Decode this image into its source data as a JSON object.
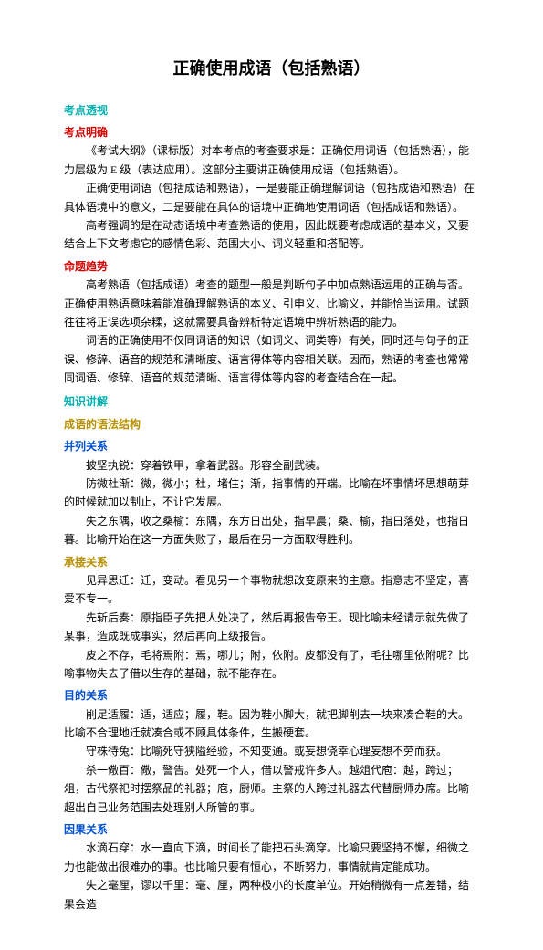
{
  "title": "正确使用成语（包括熟语）",
  "sections": [
    {
      "cls": "h-cyan",
      "bind": "s.kdtc"
    },
    {
      "cls": "h-red",
      "bind": "s.kdsm"
    },
    {
      "cls": "para",
      "bind": "p.kd1"
    },
    {
      "cls": "para",
      "bind": "p.kd2"
    },
    {
      "cls": "para",
      "bind": "p.kd3"
    },
    {
      "cls": "h-red",
      "bind": "s.mtxs"
    },
    {
      "cls": "para",
      "bind": "p.mt1"
    },
    {
      "cls": "para",
      "bind": "p.mt2"
    },
    {
      "cls": "h-cyan",
      "bind": "s.zsjj"
    },
    {
      "cls": "h-gold",
      "bind": "s.yfjg1"
    },
    {
      "cls": "h-blue",
      "bind": "s.bl"
    },
    {
      "cls": "para",
      "bind": "p.bl1"
    },
    {
      "cls": "para",
      "bind": "p.bl2"
    },
    {
      "cls": "para",
      "bind": "p.bl3"
    },
    {
      "cls": "h-gold",
      "bind": "s.yfjg2"
    },
    {
      "cls": "para",
      "bind": "p.cj1"
    },
    {
      "cls": "para",
      "bind": "p.cj2"
    },
    {
      "cls": "para",
      "bind": "p.cj3"
    },
    {
      "cls": "h-blue",
      "bind": "s.md"
    },
    {
      "cls": "para",
      "bind": "p.md1"
    },
    {
      "cls": "para",
      "bind": "p.md2"
    },
    {
      "cls": "para",
      "bind": "p.md3"
    },
    {
      "cls": "h-blue",
      "bind": "s.yg"
    },
    {
      "cls": "para",
      "bind": "p.yg1"
    },
    {
      "cls": "para",
      "bind": "p.yg2"
    }
  ],
  "s": {
    "kdtc": "考点透视",
    "kdsm": "考点明确",
    "mtxs": "命题趋势",
    "zsjj": "知识讲解",
    "yfjg1": "成语的语法结构",
    "bl": "并列关系",
    "yfjg2": "承接关系",
    "md": "目的关系",
    "yg": "因果关系"
  },
  "p": {
    "kd1": "《考试大纲》（课标版）对本考点的考查要求是：正确使用词语（包括熟语），能力层级为 E 级（表达应用）。这部分主要讲正确使用成语（包括熟语）。",
    "kd2": "正确使用词语（包括成语和熟语），一是要能正确理解词语（包括成语和熟语）在具体语境中的意义，二是要能在具体的语境中正确地使用词语（包括成语和熟语）。",
    "kd3": "高考强调的是在动态语境中考查熟语的使用，因此既要考虑成语的基本义，又要结合上下文考虑它的感情色彩、范围大小、词义轻重和搭配等。",
    "mt1": "高考熟语（包括成语）考查的题型一般是判断句子中加点熟语运用的正确与否。正确使用熟语意味着能准确理解熟语的本义、引申义、比喻义，并能恰当运用。试题往往将正误选项杂糅，这就需要具备辨析特定语境中辨析熟语的能力。",
    "mt2": "词语的正确使用不仅同词语的知识（如词义、词类等）有关，同时还与句子的正误、修辞、语音的规范和清晰度、语言得体等内容相关联。因而，熟语的考查也常常同词语、修辞、语音的规范清晰、语言得体等内容的考查结合在一起。",
    "bl1": "披坚执锐：穿着铁甲，拿着武器。形容全副武装。",
    "bl2": "防微杜渐：微，微小；杜，堵住；渐，指事情的开端。比喻在坏事情坏思想萌芽的时候就加以制止，不让它发展。",
    "bl3": "失之东隅，收之桑榆：东隅，东方日出处，指早晨；桑、榆，指日落处，也指日暮。比喻开始在这一方面失败了，最后在另一方面取得胜利。",
    "cj1": "见异思迁：迁，变动。看见另一个事物就想改变原来的主意。指意志不坚定，喜爱不专一。",
    "cj2": "先斩后奏：原指臣子先把人处决了，然后再报告帝王。现比喻未经请示就先做了某事，造成既成事实，然后再向上级报告。",
    "cj3": "皮之不存，毛将焉附：焉，哪儿；附，依附。皮都没有了，毛往哪里依附呢？比喻事物失去了借以生存的基础，就不能存在。",
    "md1": "削足适履：适，适应；履，鞋。因为鞋小脚大，就把脚削去一块来凑合鞋的大。比喻不合理地迁就凑合或不顾具体条件，生搬硬套。",
    "md2": "守株待兔：比喻死守狭隘经验，不知变通。或妄想侥幸心理妄想不劳而获。",
    "md3": "杀一儆百：儆，警告。处死一个人，借以警戒许多人。越俎代庖：越，跨过；俎，古代祭祀时摆祭品的礼器；庖，厨师。主祭的人跨过礼器去代替厨师办席。比喻超出自己业务范围去处理别人所管的事。",
    "yg1": "水滴石穿：水一直向下滴，时间长了能把石头滴穿。比喻只要坚持不懈，细微之力也能做出很难办的事。也比喻只要有恒心，不断努力，事情就肯定能成功。",
    "yg2": "失之毫厘，谬以千里：毫、厘，两种极小的长度单位。开始稍微有一点差错，结果会造"
  }
}
